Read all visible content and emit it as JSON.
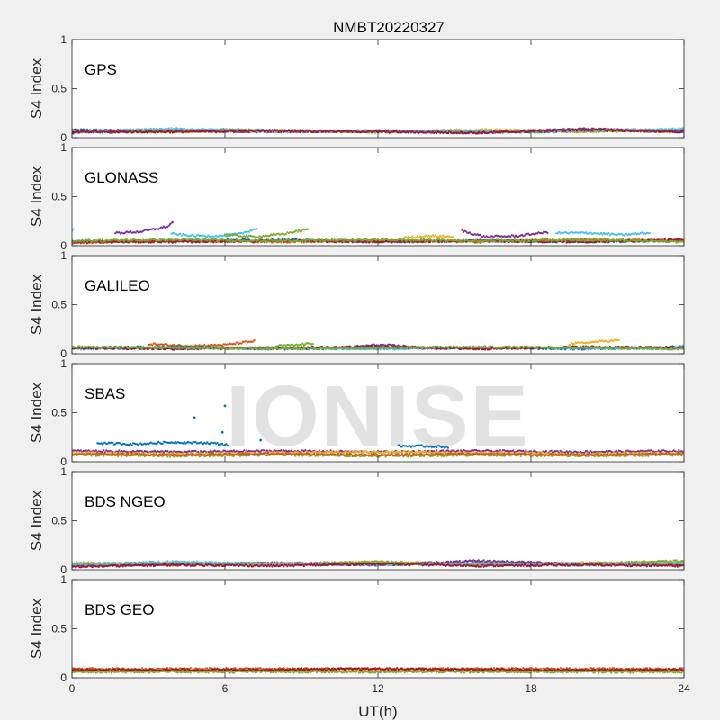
{
  "chart_data": {
    "type": "scatter",
    "title": "NMBT20220327",
    "xlabel": "UT(h)",
    "ylabel": "S4 Index",
    "xlim": [
      0,
      24
    ],
    "ylim": [
      0,
      1
    ],
    "xticks": [
      0,
      6,
      12,
      18,
      24
    ],
    "xtick_labels": [
      "0",
      "6",
      "12",
      "18",
      "24"
    ],
    "yticks": [
      0,
      0.5,
      1
    ],
    "ytick_labels": [
      "0",
      "0.5",
      "1"
    ],
    "watermark": "IONISE",
    "colors": [
      "#0072BD",
      "#D95319",
      "#EDB120",
      "#7E2F8E",
      "#77AC30",
      "#4DBEEE",
      "#A2142F"
    ],
    "panels": [
      {
        "label": "GPS",
        "segments": [
          {
            "color": 0,
            "x": [
              0,
              3,
              6,
              9,
              12,
              15,
              18,
              21,
              24
            ],
            "y": [
              0.08,
              0.07,
              0.08,
              0.07,
              0.06,
              0.07,
              0.06,
              0.07,
              0.06
            ]
          },
          {
            "color": 1,
            "x": [
              0,
              3,
              6,
              9,
              12,
              15,
              18,
              21,
              24
            ],
            "y": [
              0.06,
              0.08,
              0.07,
              0.06,
              0.07,
              0.06,
              0.07,
              0.08,
              0.07
            ]
          },
          {
            "color": 2,
            "x": [
              0,
              4,
              8,
              12,
              16,
              20,
              24
            ],
            "y": [
              0.07,
              0.06,
              0.07,
              0.06,
              0.08,
              0.06,
              0.07
            ]
          },
          {
            "color": 3,
            "x": [
              0,
              4,
              8,
              12,
              16,
              20,
              24
            ],
            "y": [
              0.05,
              0.07,
              0.06,
              0.07,
              0.05,
              0.09,
              0.06
            ]
          },
          {
            "color": 4,
            "x": [
              0,
              3,
              6,
              9,
              12,
              15,
              18,
              21,
              24
            ],
            "y": [
              0.07,
              0.06,
              0.08,
              0.07,
              0.06,
              0.07,
              0.06,
              0.07,
              0.08
            ]
          },
          {
            "color": 5,
            "x": [
              0,
              4,
              8,
              12,
              16,
              20,
              24
            ],
            "y": [
              0.06,
              0.09,
              0.06,
              0.07,
              0.06,
              0.07,
              0.09
            ]
          },
          {
            "color": 6,
            "x": [
              0,
              4,
              8,
              12,
              16,
              20,
              24
            ],
            "y": [
              0.06,
              0.06,
              0.07,
              0.06,
              0.05,
              0.08,
              0.06
            ]
          }
        ]
      },
      {
        "label": "GLONASS",
        "segments": [
          {
            "color": 3,
            "x": [
              1.7,
              2.6,
              3.3,
              3.8,
              4.0
            ],
            "y": [
              0.13,
              0.14,
              0.17,
              0.2,
              0.26
            ]
          },
          {
            "color": 5,
            "x": [
              3.9,
              4.8,
              5.8,
              6.6,
              7.3
            ],
            "y": [
              0.12,
              0.1,
              0.1,
              0.12,
              0.18
            ]
          },
          {
            "color": 4,
            "x": [
              6.0,
              7.2,
              8.3,
              9.3
            ],
            "y": [
              0.11,
              0.09,
              0.12,
              0.17
            ]
          },
          {
            "color": 3,
            "x": [
              15.3,
              16.2,
              17.5,
              18.7
            ],
            "y": [
              0.15,
              0.09,
              0.1,
              0.14
            ]
          },
          {
            "color": 5,
            "x": [
              19.0,
              20.3,
              21.5,
              22.7
            ],
            "y": [
              0.13,
              0.13,
              0.11,
              0.13
            ]
          },
          {
            "color": 2,
            "x": [
              13.0,
              14.0,
              15.0
            ],
            "y": [
              0.08,
              0.1,
              0.09
            ]
          },
          {
            "color": 0,
            "x": [
              0,
              4,
              8,
              12,
              16,
              20,
              24
            ],
            "y": [
              0.04,
              0.05,
              0.06,
              0.04,
              0.05,
              0.04,
              0.05
            ]
          },
          {
            "color": 1,
            "x": [
              0,
              4,
              8,
              12,
              16,
              20,
              24
            ],
            "y": [
              0.03,
              0.05,
              0.04,
              0.05,
              0.04,
              0.06,
              0.05
            ]
          },
          {
            "color": 6,
            "x": [
              0,
              4,
              8,
              12,
              16,
              20,
              24
            ],
            "y": [
              0.04,
              0.04,
              0.05,
              0.04,
              0.05,
              0.04,
              0.06
            ]
          },
          {
            "color": 4,
            "x": [
              0,
              4,
              8,
              12,
              16,
              20,
              24
            ],
            "y": [
              0.05,
              0.06,
              0.05,
              0.06,
              0.05,
              0.06,
              0.04
            ]
          },
          {
            "color": 5,
            "x": [
              0,
              0.1
            ],
            "y": [
              0.15,
              0.17
            ]
          }
        ]
      },
      {
        "label": "GALILEO",
        "segments": [
          {
            "color": 1,
            "x": [
              3.0,
              4.5,
              6.0,
              7.2
            ],
            "y": [
              0.1,
              0.08,
              0.09,
              0.13
            ]
          },
          {
            "color": 4,
            "x": [
              8.0,
              9.0,
              9.5
            ],
            "y": [
              0.08,
              0.09,
              0.11
            ]
          },
          {
            "color": 2,
            "x": [
              19.5,
              20.5,
              21.5
            ],
            "y": [
              0.1,
              0.12,
              0.14
            ]
          },
          {
            "color": 3,
            "x": [
              10.5,
              12.0,
              13.5
            ],
            "y": [
              0.06,
              0.09,
              0.07
            ]
          },
          {
            "color": 0,
            "x": [
              0,
              4,
              8,
              12,
              16,
              20,
              24
            ],
            "y": [
              0.06,
              0.07,
              0.05,
              0.06,
              0.06,
              0.05,
              0.07
            ]
          },
          {
            "color": 5,
            "x": [
              0,
              4,
              8,
              12,
              16,
              20,
              24
            ],
            "y": [
              0.05,
              0.06,
              0.06,
              0.05,
              0.06,
              0.06,
              0.05
            ]
          },
          {
            "color": 6,
            "x": [
              0,
              4,
              8,
              12,
              16,
              20,
              24
            ],
            "y": [
              0.06,
              0.05,
              0.06,
              0.07,
              0.05,
              0.07,
              0.06
            ]
          },
          {
            "color": 4,
            "x": [
              0,
              4,
              8,
              12,
              16,
              20,
              24
            ],
            "y": [
              0.07,
              0.06,
              0.05,
              0.06,
              0.07,
              0.06,
              0.05
            ]
          }
        ]
      },
      {
        "label": "SBAS",
        "segments": [
          {
            "color": 0,
            "x": [
              1.0,
              2.5,
              4.0,
              5.5,
              6.2
            ],
            "y": [
              0.19,
              0.18,
              0.2,
              0.19,
              0.17
            ]
          },
          {
            "color": 0,
            "x": [
              12.8,
              13.8,
              14.8
            ],
            "y": [
              0.16,
              0.16,
              0.15
            ]
          },
          {
            "color": 3,
            "x": [
              0,
              4,
              8,
              12,
              16,
              20,
              24
            ],
            "y": [
              0.11,
              0.1,
              0.11,
              0.1,
              0.11,
              0.1,
              0.11
            ]
          },
          {
            "color": 2,
            "x": [
              0,
              4,
              8,
              12,
              16,
              20,
              24
            ],
            "y": [
              0.09,
              0.08,
              0.09,
              0.1,
              0.09,
              0.08,
              0.09
            ]
          },
          {
            "color": 4,
            "x": [
              0,
              4,
              8,
              12,
              16,
              20,
              24
            ],
            "y": [
              0.07,
              0.06,
              0.07,
              0.06,
              0.07,
              0.06,
              0.07
            ]
          },
          {
            "color": 1,
            "x": [
              0,
              4,
              8,
              12,
              16,
              20,
              24
            ],
            "y": [
              0.08,
              0.07,
              0.08,
              0.07,
              0.08,
              0.07,
              0.08
            ]
          }
        ],
        "points": [
          {
            "color": 0,
            "x": 4.8,
            "y": 0.45
          },
          {
            "color": 0,
            "x": 6.0,
            "y": 0.57
          },
          {
            "color": 0,
            "x": 5.9,
            "y": 0.3
          },
          {
            "color": 0,
            "x": 7.4,
            "y": 0.22
          }
        ]
      },
      {
        "label": "BDS NGEO",
        "segments": [
          {
            "color": 0,
            "x": [
              0,
              4,
              8,
              12,
              16,
              20,
              24
            ],
            "y": [
              0.05,
              0.07,
              0.06,
              0.07,
              0.06,
              0.05,
              0.07
            ]
          },
          {
            "color": 1,
            "x": [
              0,
              4,
              8,
              12,
              16,
              20,
              24
            ],
            "y": [
              0.06,
              0.05,
              0.07,
              0.06,
              0.07,
              0.06,
              0.05
            ]
          },
          {
            "color": 2,
            "x": [
              0,
              4,
              8,
              12,
              16,
              20,
              24
            ],
            "y": [
              0.07,
              0.06,
              0.05,
              0.08,
              0.06,
              0.07,
              0.08
            ]
          },
          {
            "color": 3,
            "x": [
              0,
              4,
              8,
              12,
              16,
              20,
              24
            ],
            "y": [
              0.04,
              0.06,
              0.06,
              0.05,
              0.09,
              0.06,
              0.05
            ]
          },
          {
            "color": 4,
            "x": [
              0,
              4,
              8,
              12,
              16,
              20,
              24
            ],
            "y": [
              0.06,
              0.07,
              0.06,
              0.08,
              0.05,
              0.06,
              0.09
            ]
          },
          {
            "color": 5,
            "x": [
              0,
              4,
              8,
              12,
              16,
              20,
              24
            ],
            "y": [
              0.05,
              0.08,
              0.06,
              0.05,
              0.06,
              0.05,
              0.06
            ]
          },
          {
            "color": 6,
            "x": [
              0,
              4,
              8,
              12,
              16,
              20,
              24
            ],
            "y": [
              0.03,
              0.05,
              0.04,
              0.06,
              0.04,
              0.05,
              0.04
            ]
          }
        ]
      },
      {
        "label": "BDS GEO",
        "segments": [
          {
            "color": 1,
            "x": [
              0,
              6,
              12,
              18,
              24
            ],
            "y": [
              0.09,
              0.09,
              0.09,
              0.09,
              0.09
            ]
          },
          {
            "color": 2,
            "x": [
              0,
              6,
              12,
              18,
              24
            ],
            "y": [
              0.07,
              0.07,
              0.07,
              0.07,
              0.07
            ]
          },
          {
            "color": 6,
            "x": [
              0,
              6,
              12,
              18,
              24
            ],
            "y": [
              0.08,
              0.08,
              0.09,
              0.08,
              0.08
            ]
          },
          {
            "color": 4,
            "x": [
              0,
              6,
              12,
              18,
              24
            ],
            "y": [
              0.06,
              0.06,
              0.06,
              0.06,
              0.06
            ]
          }
        ]
      }
    ]
  }
}
